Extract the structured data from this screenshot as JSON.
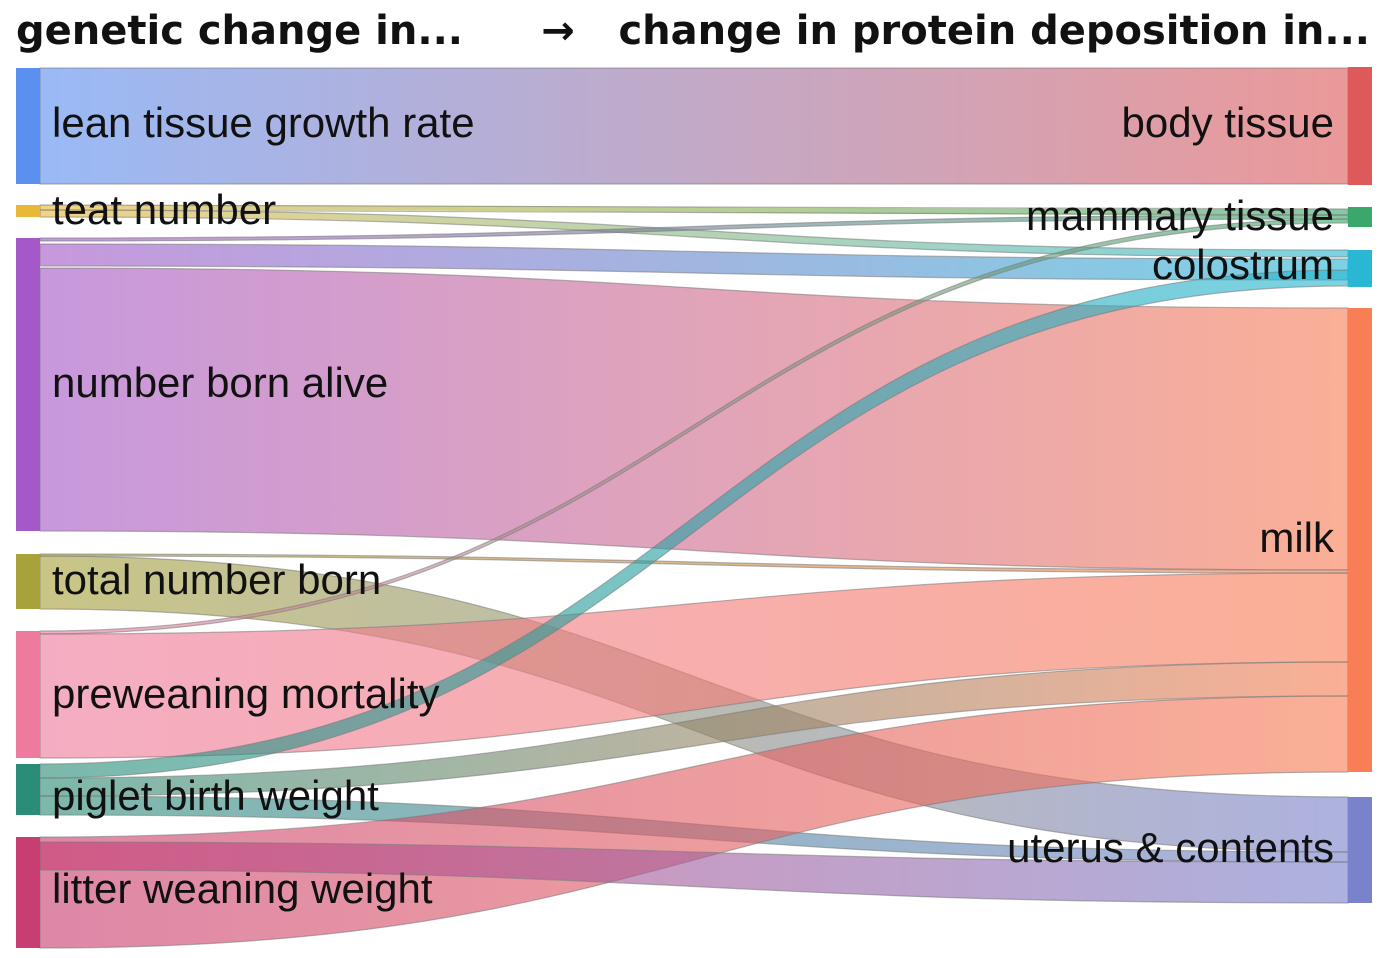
{
  "header": {
    "left": "genetic change in...",
    "arrow": "→",
    "right": "change in protein deposition in..."
  },
  "sources": [
    {
      "id": "lean",
      "label": "lean tissue growth rate",
      "color": "#5b8ff0"
    },
    {
      "id": "teat",
      "label": "teat number",
      "color": "#e8b838"
    },
    {
      "id": "nba",
      "label": "number born alive",
      "color": "#a559c8"
    },
    {
      "id": "tnb",
      "label": "total number born",
      "color": "#a7a23a"
    },
    {
      "id": "pwm",
      "label": "preweaning mortality",
      "color": "#ee7a9e"
    },
    {
      "id": "pbw",
      "label": "piglet birth weight",
      "color": "#2b8d78"
    },
    {
      "id": "lww",
      "label": "litter weaning weight",
      "color": "#c93e72"
    }
  ],
  "targets": [
    {
      "id": "body",
      "label": "body tissue",
      "color": "#de5a5a"
    },
    {
      "id": "mam",
      "label": "mammary tissue",
      "color": "#3aa86a"
    },
    {
      "id": "col",
      "label": "colostrum",
      "color": "#29b7d3"
    },
    {
      "id": "milk",
      "label": "milk",
      "color": "#f77e55"
    },
    {
      "id": "ut",
      "label": "uterus & contents",
      "color": "#7a82cc"
    }
  ]
}
